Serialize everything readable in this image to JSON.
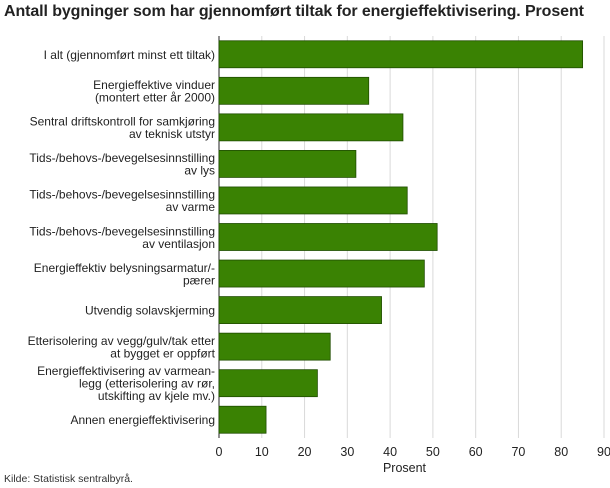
{
  "chart_data": {
    "type": "bar",
    "orientation": "horizontal",
    "title": "Antall bygninger som har gjennomført tiltak for energieffektivisering. Prosent",
    "xlabel": "Prosent",
    "ylabel": "",
    "xlim": [
      0,
      90
    ],
    "ticks": [
      0,
      10,
      20,
      30,
      40,
      50,
      60,
      70,
      80,
      90
    ],
    "grid": true,
    "bar_color": "#3a8203",
    "categories": [
      [
        "I alt (gjennomført minst ett tiltak)"
      ],
      [
        "Energieffektive vinduer",
        "(montert etter år 2000)"
      ],
      [
        "Sentral driftskontroll for samkjøring",
        "av teknisk utstyr"
      ],
      [
        "Tids-/behovs-/bevegelsesinnstilling",
        "av lys"
      ],
      [
        "Tids-/behovs-/bevegelsesinnstilling",
        "av varme"
      ],
      [
        "Tids-/behovs-/bevegelsesinnstilling",
        "av ventilasjon"
      ],
      [
        "Energieffektiv belysningsarmatur/-",
        "pærer"
      ],
      [
        "Utvendig solavskjerming"
      ],
      [
        "Etterisolering av vegg/gulv/tak etter",
        "at bygget er oppført"
      ],
      [
        "Energieffektivisering av varmean-",
        "legg (etterisolering av rør,",
        "utskifting av kjele mv.)"
      ],
      [
        "Annen energieffektivisering"
      ]
    ],
    "values": [
      85,
      35,
      43,
      32,
      44,
      51,
      48,
      38,
      26,
      23,
      11
    ]
  },
  "source": "Kilde: Statistisk sentralbyrå."
}
